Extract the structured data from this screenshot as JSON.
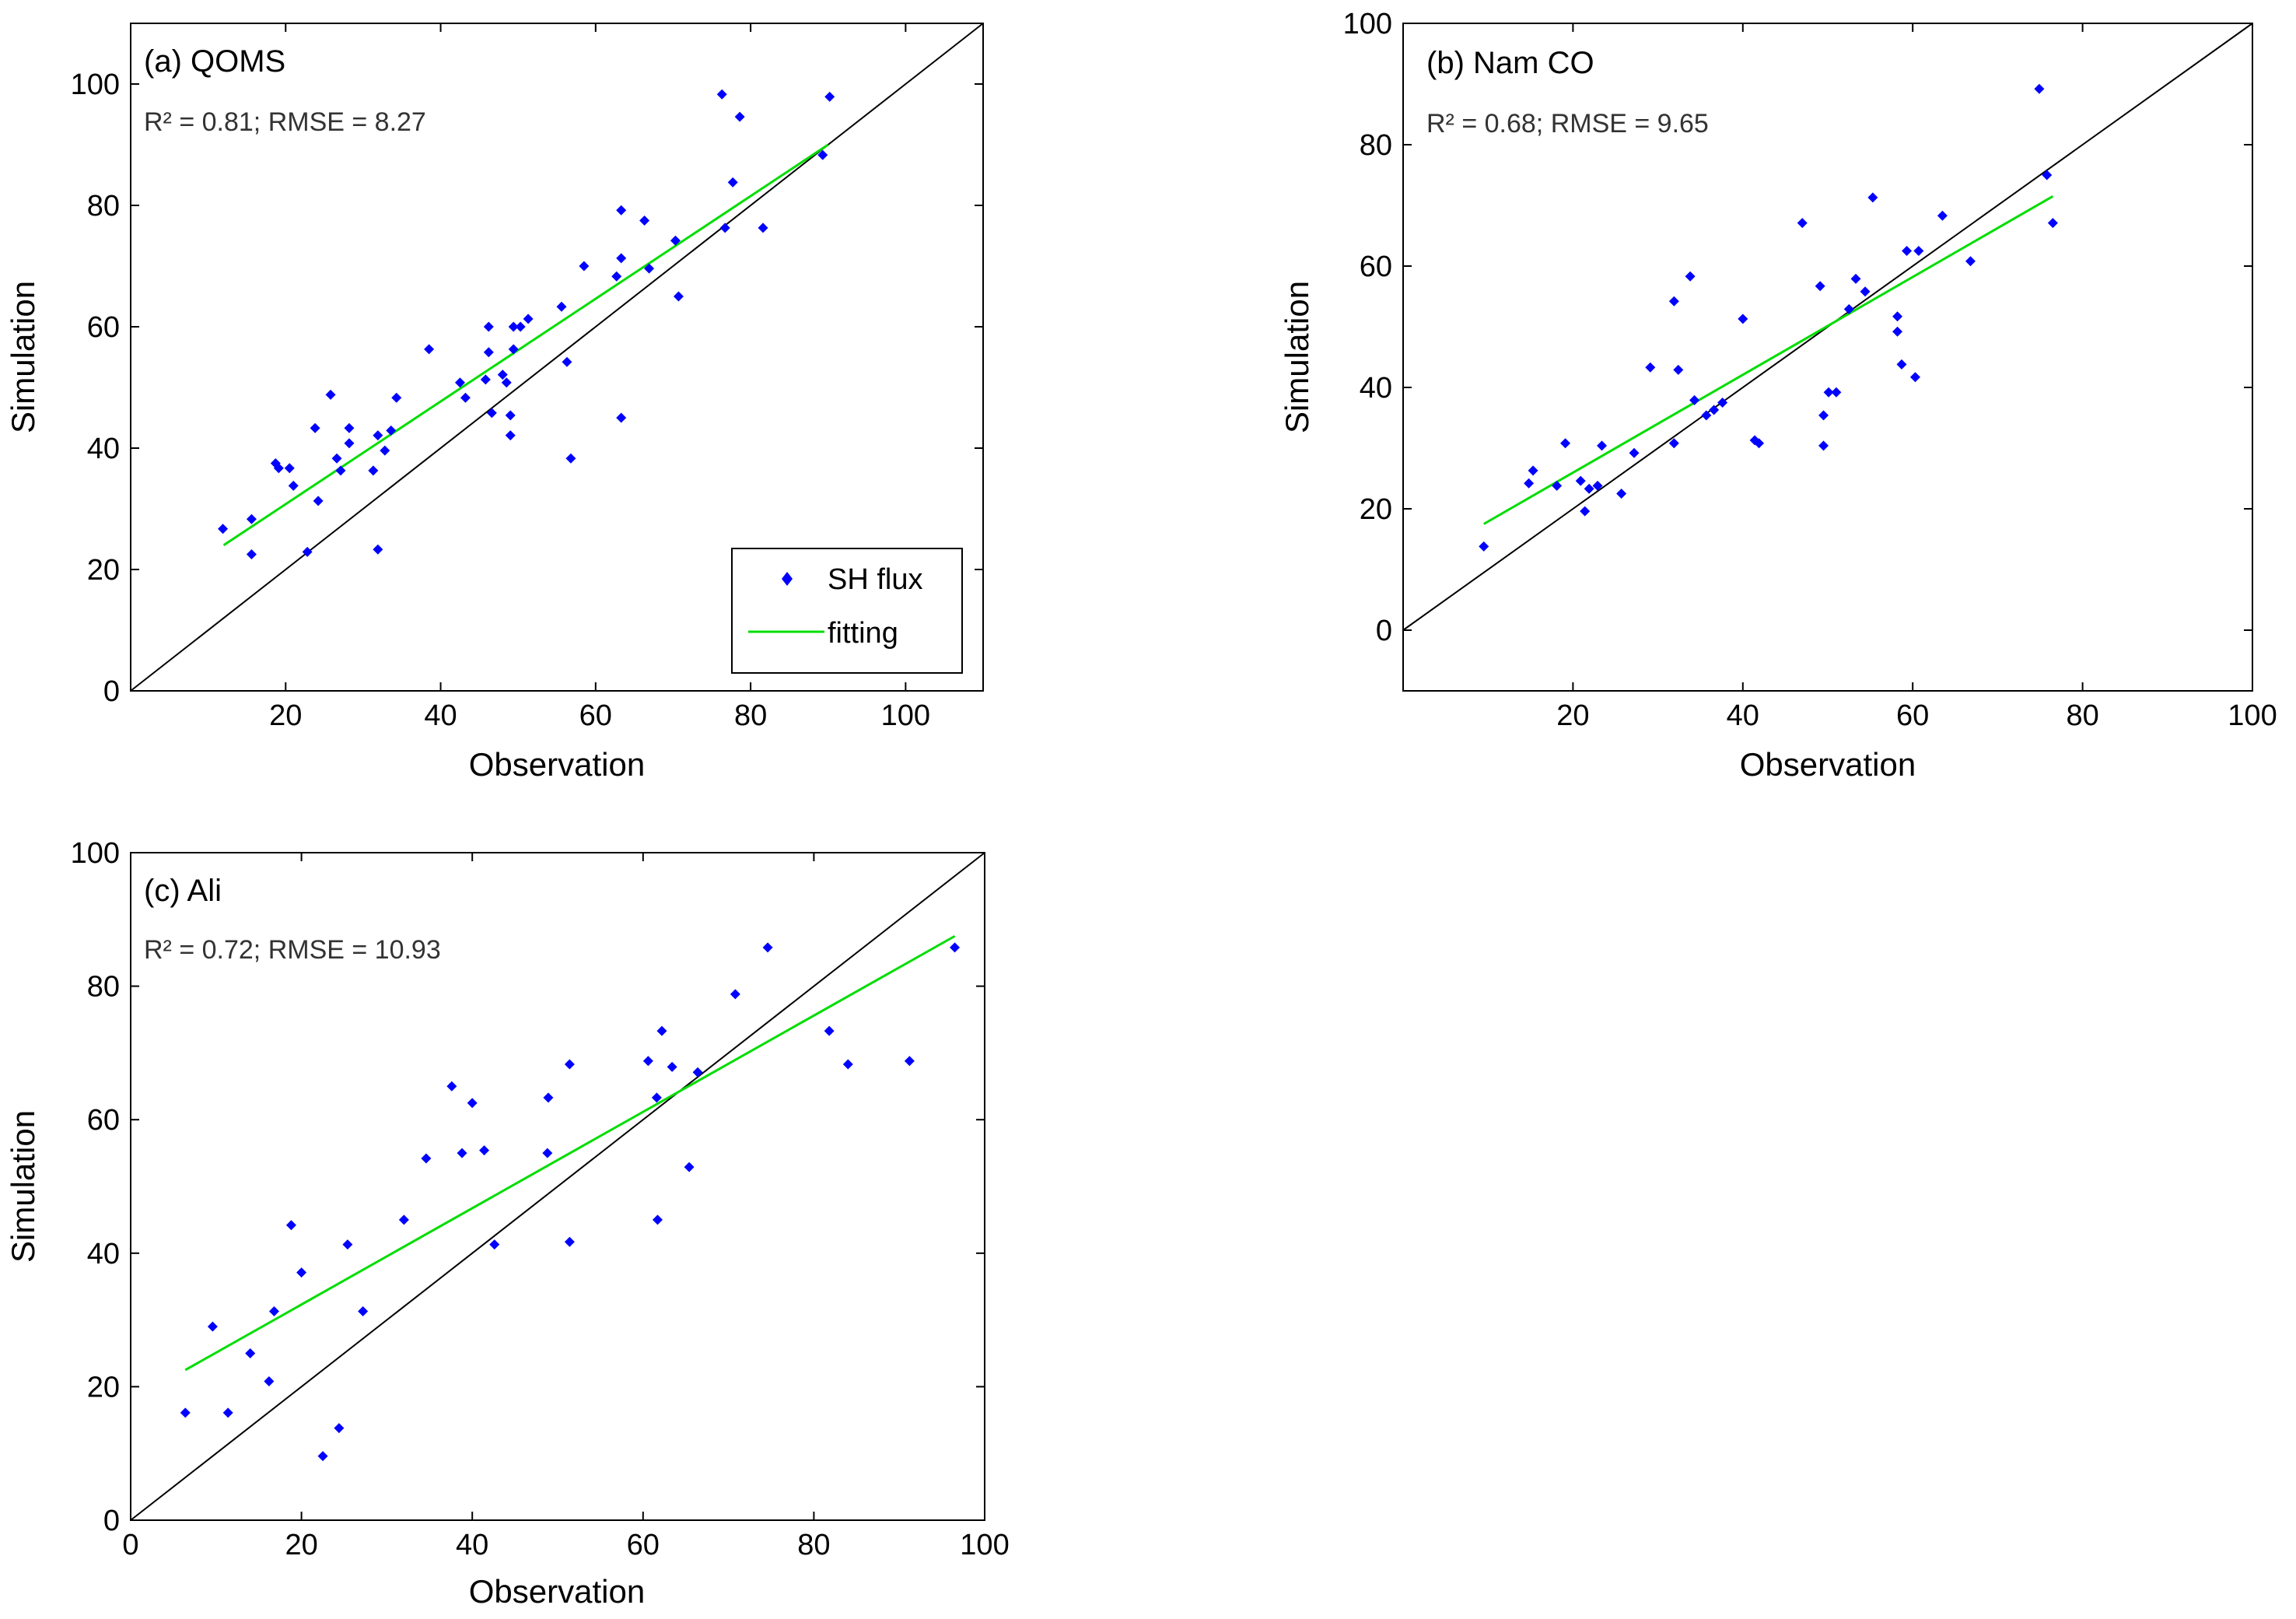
{
  "colors": {
    "points": "#0000ff",
    "fit": "#00dd00",
    "identity": "#000000",
    "axis": "#000000"
  },
  "legend": {
    "entries": [
      "SH flux",
      "fitting"
    ],
    "placement": "bottom-right",
    "panel": 0
  },
  "chart_data": [
    {
      "type": "scatter",
      "title": "(a) QOMS",
      "stats": "R² = 0.81; RMSE = 8.27",
      "xlabel": "Observation",
      "ylabel": "Simulation",
      "xlim": [
        0,
        110
      ],
      "ylim": [
        0,
        110
      ],
      "xticks": [
        20,
        40,
        60,
        80,
        100
      ],
      "yticks": [
        0,
        20,
        40,
        60,
        80,
        100
      ],
      "identity_line": true,
      "fit_line": [
        [
          12,
          24
        ],
        [
          90,
          90
        ]
      ],
      "points": [
        [
          11.9,
          26.7
        ],
        [
          15.6,
          28.3
        ],
        [
          15.6,
          22.5
        ],
        [
          18.7,
          37.5
        ],
        [
          19.1,
          36.7
        ],
        [
          20.5,
          36.7
        ],
        [
          21.0,
          33.8
        ],
        [
          22.8,
          22.9
        ],
        [
          23.8,
          43.3
        ],
        [
          24.2,
          31.3
        ],
        [
          25.8,
          48.8
        ],
        [
          26.6,
          38.3
        ],
        [
          27.1,
          36.3
        ],
        [
          28.2,
          43.3
        ],
        [
          28.2,
          40.8
        ],
        [
          31.3,
          36.3
        ],
        [
          31.9,
          42.1
        ],
        [
          31.9,
          23.3
        ],
        [
          32.8,
          39.6
        ],
        [
          33.6,
          42.9
        ],
        [
          34.3,
          48.3
        ],
        [
          38.5,
          56.3
        ],
        [
          42.5,
          50.8
        ],
        [
          43.2,
          48.3
        ],
        [
          45.8,
          51.3
        ],
        [
          46.2,
          60.0
        ],
        [
          46.2,
          55.8
        ],
        [
          46.6,
          45.8
        ],
        [
          48.0,
          52.1
        ],
        [
          48.5,
          50.8
        ],
        [
          49.0,
          42.1
        ],
        [
          49.0,
          45.4
        ],
        [
          49.4,
          56.3
        ],
        [
          49.4,
          60.0
        ],
        [
          50.3,
          60.0
        ],
        [
          51.3,
          61.3
        ],
        [
          55.6,
          63.3
        ],
        [
          56.3,
          54.2
        ],
        [
          56.8,
          38.3
        ],
        [
          58.5,
          70.0
        ],
        [
          62.7,
          68.3
        ],
        [
          63.3,
          79.2
        ],
        [
          63.3,
          71.3
        ],
        [
          63.3,
          45.0
        ],
        [
          66.3,
          77.5
        ],
        [
          66.9,
          69.6
        ],
        [
          70.3,
          74.2
        ],
        [
          70.7,
          65.0
        ],
        [
          76.3,
          98.3
        ],
        [
          76.7,
          76.3
        ],
        [
          77.7,
          83.8
        ],
        [
          78.6,
          94.6
        ],
        [
          81.6,
          76.3
        ],
        [
          89.3,
          88.3
        ],
        [
          90.2,
          97.9
        ]
      ]
    },
    {
      "type": "scatter",
      "title": "(b) Nam CO",
      "stats": "R² = 0.68; RMSE = 9.65",
      "xlabel": "Observation",
      "ylabel": "Simulation",
      "xlim": [
        0,
        100
      ],
      "ylim": [
        -10,
        100
      ],
      "xticks": [
        20,
        40,
        60,
        80,
        100
      ],
      "yticks": [
        0,
        20,
        40,
        60,
        80,
        100
      ],
      "identity_line": true,
      "fit_line": [
        [
          9.5,
          17.5
        ],
        [
          76.5,
          71.5
        ]
      ],
      "points": [
        [
          9.5,
          13.8
        ],
        [
          14.8,
          24.2
        ],
        [
          15.3,
          26.3
        ],
        [
          18.1,
          23.8
        ],
        [
          19.1,
          30.8
        ],
        [
          20.9,
          24.6
        ],
        [
          21.4,
          19.6
        ],
        [
          21.9,
          23.3
        ],
        [
          22.9,
          23.8
        ],
        [
          23.4,
          30.4
        ],
        [
          25.7,
          22.5
        ],
        [
          27.2,
          29.2
        ],
        [
          29.1,
          43.3
        ],
        [
          31.9,
          30.8
        ],
        [
          31.9,
          54.2
        ],
        [
          32.4,
          42.9
        ],
        [
          33.8,
          58.3
        ],
        [
          34.3,
          37.9
        ],
        [
          35.7,
          35.4
        ],
        [
          36.6,
          36.3
        ],
        [
          37.6,
          37.5
        ],
        [
          40.0,
          51.3
        ],
        [
          41.4,
          31.3
        ],
        [
          41.9,
          30.8
        ],
        [
          47.0,
          67.1
        ],
        [
          49.1,
          56.7
        ],
        [
          49.5,
          30.4
        ],
        [
          49.5,
          35.4
        ],
        [
          50.1,
          39.2
        ],
        [
          51.0,
          39.2
        ],
        [
          52.5,
          52.9
        ],
        [
          53.3,
          57.9
        ],
        [
          54.4,
          55.8
        ],
        [
          55.3,
          71.3
        ],
        [
          58.2,
          51.7
        ],
        [
          58.2,
          49.2
        ],
        [
          58.7,
          43.8
        ],
        [
          59.3,
          62.5
        ],
        [
          60.3,
          41.7
        ],
        [
          60.7,
          62.5
        ],
        [
          63.5,
          68.3
        ],
        [
          66.8,
          60.8
        ],
        [
          74.9,
          89.2
        ],
        [
          75.8,
          75.0
        ],
        [
          76.5,
          67.1
        ]
      ]
    },
    {
      "type": "scatter",
      "title": "(c) Ali",
      "stats": "R² = 0.72; RMSE = 10.93",
      "xlabel": "Observation",
      "ylabel": "Simulation",
      "xlim": [
        0,
        100
      ],
      "ylim": [
        0,
        100
      ],
      "xticks": [
        0,
        20,
        40,
        60,
        80,
        100
      ],
      "yticks": [
        0,
        20,
        40,
        60,
        80,
        100
      ],
      "identity_line": true,
      "fit_line": [
        [
          6.4,
          22.5
        ],
        [
          96.5,
          87.5
        ]
      ],
      "points": [
        [
          6.4,
          16.1
        ],
        [
          9.6,
          29.0
        ],
        [
          11.4,
          16.1
        ],
        [
          14.0,
          25.0
        ],
        [
          16.2,
          20.8
        ],
        [
          16.8,
          31.3
        ],
        [
          18.8,
          44.2
        ],
        [
          20.0,
          37.1
        ],
        [
          22.5,
          9.6
        ],
        [
          24.4,
          13.8
        ],
        [
          25.4,
          41.3
        ],
        [
          27.2,
          31.3
        ],
        [
          32.0,
          45.0
        ],
        [
          34.6,
          54.2
        ],
        [
          37.6,
          65.0
        ],
        [
          38.8,
          55.0
        ],
        [
          40.0,
          62.5
        ],
        [
          41.4,
          55.4
        ],
        [
          42.6,
          41.3
        ],
        [
          48.8,
          55.0
        ],
        [
          48.9,
          63.3
        ],
        [
          51.4,
          68.3
        ],
        [
          51.4,
          41.7
        ],
        [
          60.6,
          68.8
        ],
        [
          61.6,
          63.3
        ],
        [
          61.7,
          45.0
        ],
        [
          62.2,
          73.3
        ],
        [
          63.4,
          67.9
        ],
        [
          65.4,
          52.9
        ],
        [
          66.4,
          67.1
        ],
        [
          70.8,
          78.8
        ],
        [
          74.6,
          85.8
        ],
        [
          81.8,
          73.3
        ],
        [
          84.0,
          68.3
        ],
        [
          91.2,
          68.8
        ],
        [
          96.5,
          85.8
        ]
      ]
    }
  ]
}
